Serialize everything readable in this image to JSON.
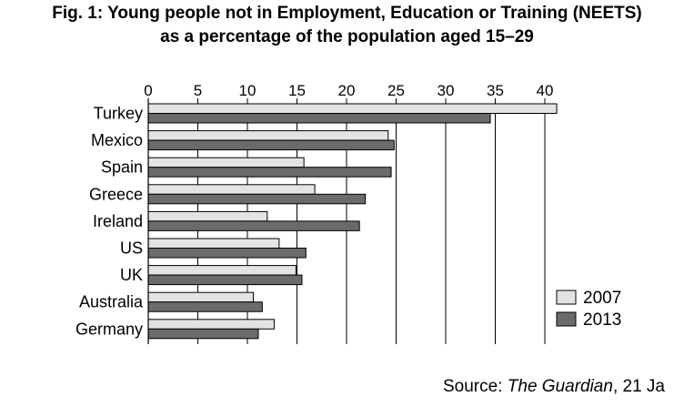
{
  "title": {
    "line1": "Fig. 1: Young people not in Employment, Education or Training (NEETS)",
    "line2": "as a percentage of the population aged 15–29"
  },
  "source": {
    "prefix": "Source: ",
    "publication": "The Guardian",
    "date": ", 21 Ja"
  },
  "colors": {
    "series_2007": "#e3e3e3",
    "series_2013": "#6b6b6b",
    "bar_outline": "#000000",
    "gridline": "#000000"
  },
  "chart_data": {
    "type": "bar",
    "orientation": "horizontal",
    "categories": [
      "Turkey",
      "Mexico",
      "Spain",
      "Greece",
      "Ireland",
      "US",
      "UK",
      "Australia",
      "Germany"
    ],
    "series": [
      {
        "name": "2007",
        "values": [
          41.2,
          24.2,
          15.7,
          16.8,
          12.0,
          13.2,
          14.9,
          10.6,
          12.7
        ]
      },
      {
        "name": "2013",
        "values": [
          34.5,
          24.8,
          24.5,
          21.9,
          21.3,
          15.9,
          15.5,
          11.5,
          11.1
        ]
      }
    ],
    "xticks": [
      "0",
      "5",
      "10",
      "15",
      "20",
      "25",
      "30",
      "35",
      "40"
    ],
    "xlim": [
      0,
      41.5
    ],
    "x_axis_position": "top",
    "grid": true,
    "legend_position": "bottom-right"
  }
}
